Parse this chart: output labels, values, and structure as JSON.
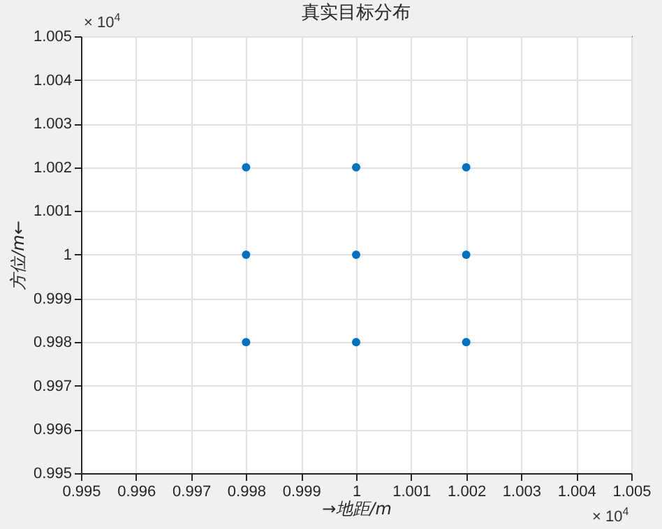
{
  "chart_data": {
    "type": "scatter",
    "title": "真实目标分布",
    "xlabel": "→地距/m",
    "ylabel": "方位/m←",
    "annotations": [
      "× 10$^{4}$",
      "× 10$^{4}$"
    ],
    "x": [
      0.998,
      0.998,
      0.998,
      1,
      1,
      1,
      1.002,
      1.002,
      1.002
    ],
    "series": [
      {
        "color": "#0072bd",
        "values": [
          1.002,
          1,
          0.998,
          1.002,
          1,
          0.998,
          1.002,
          1,
          0.998
        ]
      }
    ],
    "xlim": [
      0.995,
      1.005
    ],
    "ylim": [
      0.995,
      1.005
    ],
    "xticks": [
      0.995,
      0.996,
      0.997,
      0.998,
      0.999,
      1,
      1.001,
      1.002,
      1.003,
      1.004,
      1.005
    ],
    "yticks": [
      0.995,
      0.996,
      0.997,
      0.998,
      0.999,
      1,
      1.001,
      1.002,
      1.003,
      1.004,
      1.005
    ],
    "grid": true,
    "marker": "circle"
  }
}
